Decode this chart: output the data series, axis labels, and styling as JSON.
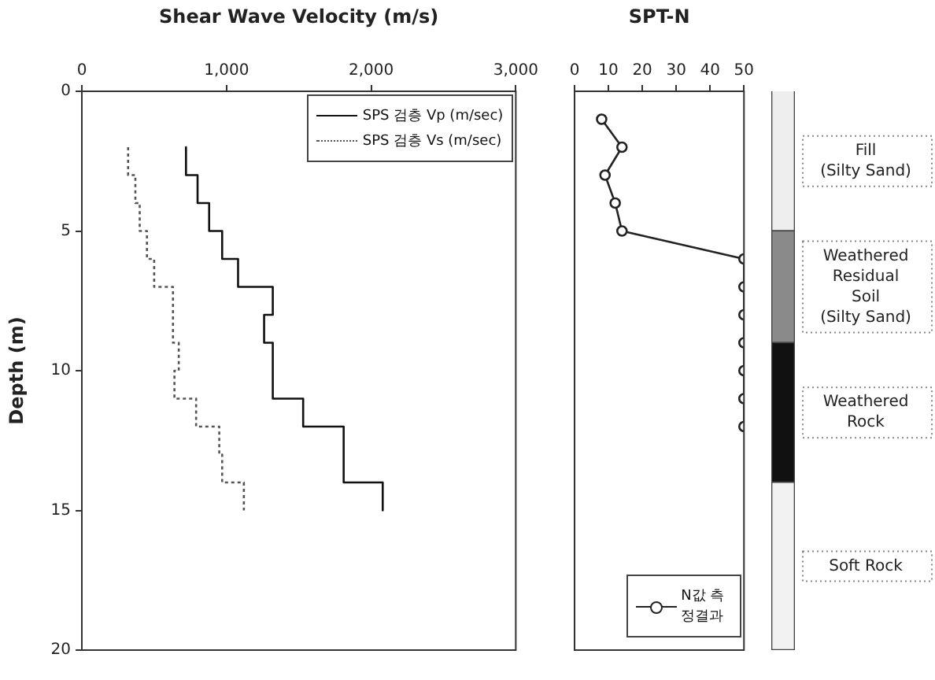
{
  "chart_data": [
    {
      "type": "step",
      "orientation": "horizontal",
      "xlabel": "Shear Wave Velocity (m/s)",
      "ylabel": "Depth (m)",
      "xlim": [
        0,
        3000
      ],
      "xticks": [
        0,
        {
          "value": 1000,
          "label": "1,000"
        },
        {
          "value": 2000,
          "label": "2,000"
        },
        {
          "value": 3000,
          "label": "3,000"
        }
      ],
      "ylim": [
        20,
        0
      ],
      "yticks": [
        0,
        5,
        10,
        15,
        20
      ],
      "legend": "top right",
      "grid": false,
      "series": [
        {
          "name": "SPS 검층 Vp (m/sec)",
          "color": "#111111",
          "line_style": "solid",
          "x": [
            2,
            3,
            4,
            5,
            6,
            7,
            8,
            9,
            11,
            12,
            14,
            15
          ],
          "values": [
            720,
            800,
            880,
            970,
            1080,
            1320,
            1260,
            1320,
            1530,
            1810,
            2080,
            2080
          ]
        },
        {
          "name": "SPS 검층 Vs (m/sec)",
          "color": "#555555",
          "line_style": "dotted",
          "x": [
            2,
            3,
            4,
            5,
            6,
            7,
            9,
            10,
            11,
            12,
            13,
            14,
            15
          ],
          "values": [
            320,
            370,
            400,
            450,
            500,
            630,
            670,
            640,
            790,
            950,
            970,
            1120,
            1120
          ]
        }
      ]
    },
    {
      "type": "line",
      "orientation": "horizontal",
      "xlabel": "SPT-N",
      "xlim": [
        0,
        50
      ],
      "xticks": [
        0,
        10,
        20,
        30,
        40,
        50
      ],
      "ylim": [
        20,
        0
      ],
      "tick_labels": "x",
      "legend": "bottom right",
      "marker": "circle",
      "grid": false,
      "series": [
        {
          "name": "N값 측정결과",
          "color": "#222222",
          "x": [
            1,
            2,
            3,
            4,
            5,
            6,
            7,
            8,
            9,
            10,
            11,
            12
          ],
          "values": [
            8,
            14,
            9,
            12,
            14,
            50,
            50,
            50,
            50,
            50,
            50,
            50
          ]
        }
      ]
    },
    {
      "type": "bar",
      "stacked": true,
      "categories": [
        null
      ],
      "ylim": [
        20,
        0
      ],
      "tick_labels": false,
      "series": [
        {
          "name": "Fill\n(Silty Sand)",
          "color": "#eeeeee",
          "values": [
            5
          ]
        },
        {
          "name": "Weathered\nResidual\nSoil\n(Silty Sand)",
          "color": "#8a8a8a",
          "values": [
            4
          ]
        },
        {
          "name": "Weathered\nRock",
          "color": "#111111",
          "values": [
            5
          ]
        },
        {
          "name": "Soft Rock",
          "color": "#f2f2f2",
          "values": [
            6
          ]
        }
      ]
    }
  ]
}
